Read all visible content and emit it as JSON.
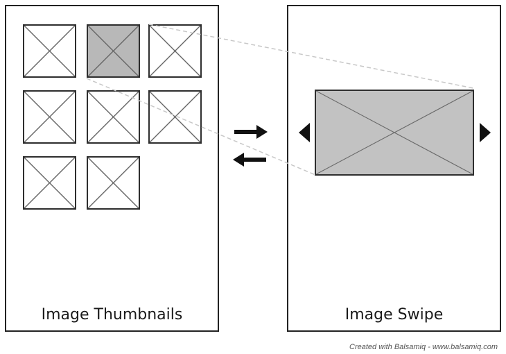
{
  "left_panel": {
    "label": "Image Thumbnails",
    "thumbnails": [
      {
        "selected": false
      },
      {
        "selected": true
      },
      {
        "selected": false
      },
      {
        "selected": false
      },
      {
        "selected": false
      },
      {
        "selected": false
      },
      {
        "selected": false
      },
      {
        "selected": false
      }
    ]
  },
  "right_panel": {
    "label": "Image Swipe",
    "prev_icon": "triangle-left-icon",
    "next_icon": "triangle-right-icon"
  },
  "transition_arrows": {
    "forward_icon": "arrow-right-icon",
    "back_icon": "arrow-left-icon"
  },
  "footer": {
    "text": "Created with Balsamiq - www.balsamiq.com"
  },
  "colors": {
    "border": "#222222",
    "selected_fill": "#b8b8b8",
    "image_fill": "#c2c2c2",
    "connector": "#c8c8c8"
  }
}
